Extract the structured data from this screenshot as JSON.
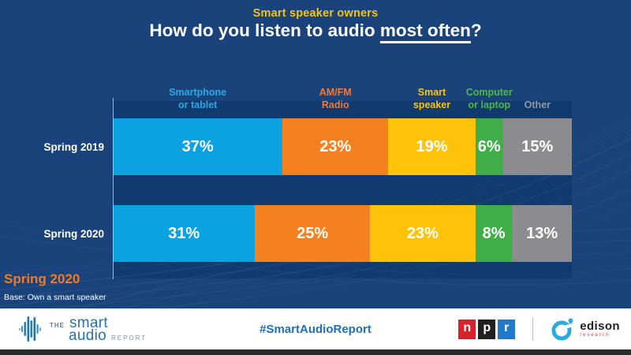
{
  "header": {
    "kicker": "Smart speaker owners",
    "title_prefix": "How do you listen to audio ",
    "title_underline": "most often",
    "title_suffix": "?"
  },
  "chart_data": {
    "type": "bar",
    "orientation": "horizontal",
    "stacked": true,
    "unit": "percent",
    "value_suffix": "%",
    "title": "How do you listen to audio most often?",
    "subtitle": "Smart speaker owners",
    "categories": [
      "Smartphone or tablet",
      "AM/FM Radio",
      "Smart speaker",
      "Computer or laptop",
      "Other"
    ],
    "category_label_lines": [
      "Smartphone\nor tablet",
      "AM/FM\nRadio",
      "Smart\nspeaker",
      "Computer\nor laptop",
      "Other"
    ],
    "colors": [
      "#0ca2e2",
      "#f5801f",
      "#fdc30b",
      "#3fae49",
      "#8c8c90"
    ],
    "label_colors": [
      "#2ea7e4",
      "#f0783a",
      "#fdc30b",
      "#4cb848",
      "#8b99a9"
    ],
    "value_label_color": "#ffffff",
    "rows": [
      {
        "label": "Spring 2019",
        "values": [
          37,
          23,
          19,
          6,
          15
        ]
      },
      {
        "label": "Spring 2020",
        "values": [
          31,
          25,
          23,
          8,
          13
        ]
      }
    ],
    "xlim": [
      0,
      100
    ],
    "legend_position": "top",
    "grid": false
  },
  "footnote": {
    "season": "Spring 2020",
    "base": "Base: Own a smart speaker"
  },
  "footer": {
    "hashtag": "#SmartAudioReport",
    "brand": {
      "the": "THE",
      "smart": "smart",
      "audio": "audio",
      "report": "REPORT"
    },
    "npr": {
      "letters": [
        "n",
        "p",
        "r"
      ]
    },
    "edison": {
      "name": "edison",
      "sub": "research"
    }
  },
  "theme": {
    "background": "#1a437c",
    "plot_background": "#113a6f",
    "kicker_color": "#f2c318",
    "title_color": "#ffffff",
    "footnote_orange": "#f47a20",
    "hashtag_blue": "#1d70b8",
    "brand_blue": "#2173b5",
    "npr_red": "#d8232a",
    "npr_black": "#231f20",
    "npr_blue": "#1f7ac9",
    "edison_blue": "#29abe2",
    "edison_red": "#e23b3e"
  }
}
